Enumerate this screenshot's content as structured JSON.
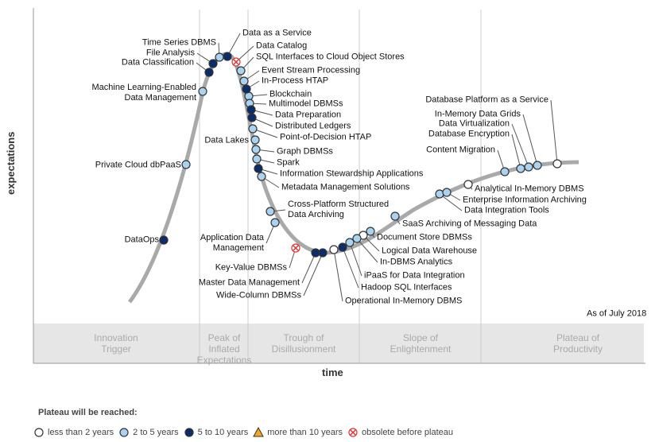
{
  "y_axis_label": "expectations",
  "x_axis_label": "time",
  "as_of": "As of July 2018",
  "phases": [
    "Innovation\nTrigger",
    "Peak of\nInflated\nExpectations",
    "Trough of\nDisillusionment",
    "Slope of\nEnlightenment",
    "Plateau of\nProductivity"
  ],
  "plateau": {
    "title": "Plateau will be reached:",
    "groups": [
      {
        "label": "less than 2 years",
        "technologies": [
          "Operational In-Memory DBMS",
          "Logical Data Warehouse",
          "Analytical In-Memory DBMS",
          "Database Platform as a Service"
        ]
      },
      {
        "label": "2 to 5 years",
        "technologies": [
          "Private Cloud dbPaaS",
          "Machine Learning-Enabled\nData Management",
          "Time Series DBMS",
          "SQL Interfaces to Cloud Object Stores",
          "Event Stream Processing",
          "Blockchain",
          "Multimodel DBMSs",
          "Point-of-Decision HTAP",
          "Data Lakes",
          "Graph DBMSs",
          "Spark",
          "Metadata Management Solutions",
          "Cross-Platform Structured\nData Archiving",
          "Application Data\nManagement",
          "iPaaS for Data Integration",
          "In-DBMS Analytics",
          "Document Store DBMSs",
          "SaaS Archiving of Messaging Data",
          "Data Integration Tools",
          "Enterprise Information Archiving",
          "Content Migration",
          "Database Encryption",
          "Data Virtualization",
          "In-Memory Data Grids"
        ]
      },
      {
        "label": "5 to 10 years",
        "technologies": [
          "DataOps",
          "Data Classification",
          "File Analysis",
          "Data as a Service",
          "In-Process HTAP",
          "Data Preparation",
          "Distributed Ledgers",
          "Information Stewardship Applications",
          "Master Data Management",
          "Wide-Column DBMSs",
          "Hadoop SQL Interfaces"
        ]
      },
      {
        "label": "more than 10 years",
        "technologies": []
      },
      {
        "label": "obsolete before plateau",
        "technologies": [
          "Data Catalog",
          "Key-Value DBMSs"
        ]
      }
    ]
  }
}
